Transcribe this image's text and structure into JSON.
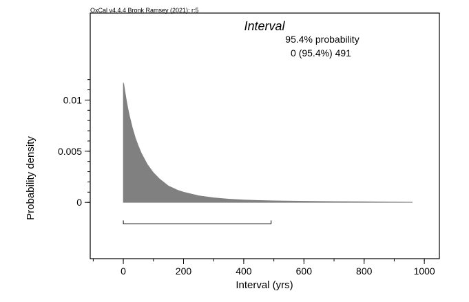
{
  "header": {
    "software": "OxCal v4.4.4 Bronk Ramsey (2021); r:5"
  },
  "chart_data": {
    "type": "area",
    "title": "Interval",
    "annotation": {
      "line1": "95.4% probability",
      "line2": "0 (95.4%) 491"
    },
    "xlabel": "Interval (yrs)",
    "ylabel": "Probability density",
    "xlim": [
      -110,
      1050
    ],
    "ylim": [
      -0.0055,
      0.0185
    ],
    "x_ticks": [
      {
        "value": 0,
        "label": "0"
      },
      {
        "value": 200,
        "label": "200"
      },
      {
        "value": 400,
        "label": "400"
      },
      {
        "value": 600,
        "label": "600"
      },
      {
        "value": 800,
        "label": "800"
      },
      {
        "value": 1000,
        "label": "1000"
      }
    ],
    "x_minor_step": 100,
    "y_ticks": [
      {
        "value": 0,
        "label": "0"
      },
      {
        "value": 0.005,
        "label": "0.005"
      },
      {
        "value": 0.01,
        "label": "0.01"
      }
    ],
    "y_minor_step": 0.001,
    "y_minor_max": 0.012,
    "range_95": {
      "from": 0,
      "to": 491,
      "y": -0.0021
    },
    "fill_color": "#808080",
    "series": [
      {
        "x": [
          0,
          2,
          5,
          10,
          15,
          20,
          30,
          40,
          50,
          60,
          80,
          100,
          120,
          150,
          180,
          200,
          250,
          300,
          350,
          400,
          450,
          500,
          600,
          700,
          800,
          880,
          960
        ],
        "y": [
          0.0117,
          0.0115,
          0.0109,
          0.01,
          0.0092,
          0.0085,
          0.0073,
          0.0063,
          0.0055,
          0.0048,
          0.0037,
          0.0029,
          0.0023,
          0.0016,
          0.0012,
          0.001,
          0.00065,
          0.00045,
          0.00032,
          0.00024,
          0.00019,
          0.00015,
          0.00011,
          8e-05,
          6e-05,
          4e-05,
          2e-05
        ]
      }
    ]
  }
}
